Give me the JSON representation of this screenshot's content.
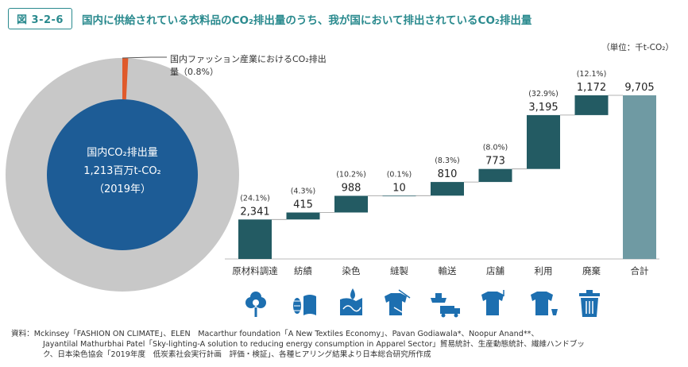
{
  "figure": {
    "number": "図 3-2-6",
    "title": "国内に供給されている衣料品のCO₂排出量のうち、我が国において排出されているCO₂排出量",
    "unit": "（単位：千t-CO₂）"
  },
  "donut": {
    "callout_line1": "国内ファッション産業におけるCO₂排出",
    "callout_line2": "量（0.8%）",
    "center_line1": "国内CO₂排出量",
    "center_line2": "1,213百万t-CO₂",
    "center_line3": "（2019年）",
    "domestic_share_percent": 0.8,
    "colors": {
      "outer": "#c8c8c8",
      "inner": "#1d5c96",
      "slice": "#e05a2b"
    }
  },
  "chart_data": {
    "type": "waterfall",
    "categories": [
      "原材料調達",
      "紡績",
      "染色",
      "縫製",
      "輸送",
      "店舗",
      "利用",
      "廃棄",
      "合計"
    ],
    "values": [
      2341,
      415,
      988,
      10,
      810,
      773,
      3195,
      1172,
      9705
    ],
    "value_labels": [
      "2,341",
      "415",
      "988",
      "10",
      "810",
      "773",
      "3,195",
      "1,172",
      "9,705"
    ],
    "percent_labels": [
      "(24.1%)",
      "(4.3%)",
      "(10.2%)",
      "(0.1%)",
      "(8.3%)",
      "(8.0%)",
      "(32.9%)",
      "(12.1%)",
      ""
    ],
    "is_total": [
      false,
      false,
      false,
      false,
      false,
      false,
      false,
      false,
      true
    ],
    "unit": "千t-CO₂",
    "ylim": [
      0,
      9705
    ],
    "colors": {
      "step": "#235b63",
      "total": "#6f9aa3",
      "connector": "#9a9a9a"
    }
  },
  "icons": [
    "cotton-icon",
    "yarn-fabric-icon",
    "dye-icon",
    "sewing-icon",
    "transport-icon",
    "shop-icon",
    "wear-icon",
    "trash-icon"
  ],
  "source": {
    "line1": "資料：Mckinsey「FASHION ON CLIMATE」、ELEN　Macarthur foundation「A New Textiles Economy」、Pavan Godiawala*、Noopur Anand**、",
    "line2": "Jayantilal Mathurbhai Patel「Sky-lighting-A solution to reducing energy consumption in Apparel Sector」貿易統計、生産動態統計、繊維ハンドブッ",
    "line3": "ク、日本染色協会「2019年度　低炭素社会実行計画　評価・検証」、各種ヒアリング結果より日本総合研究所作成"
  }
}
